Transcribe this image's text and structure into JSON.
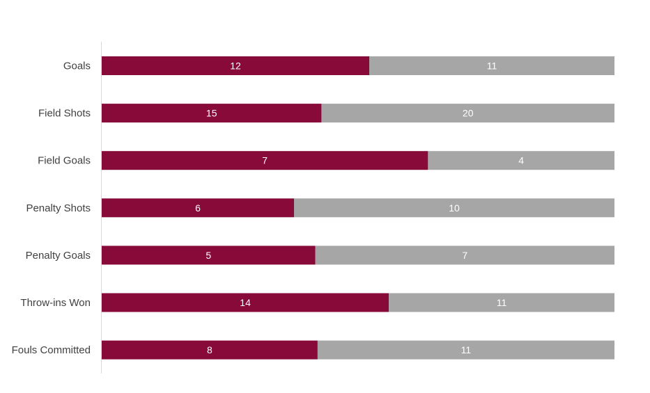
{
  "chart_data": {
    "type": "bar",
    "orientation": "horizontal",
    "stacked": "percent",
    "categories": [
      "Goals",
      "Field Shots",
      "Field Goals",
      "Penalty Shots",
      "Penalty Goals",
      "Throw-ins Won",
      "Fouls Committed"
    ],
    "series": [
      {
        "color": "#880a38",
        "values": [
          12,
          15,
          7,
          6,
          5,
          14,
          8
        ]
      },
      {
        "color": "#a6a6a6",
        "values": [
          11,
          20,
          4,
          10,
          7,
          11,
          11
        ]
      }
    ],
    "title": "",
    "xlabel": "",
    "ylabel": "",
    "grid": false,
    "legend": "none",
    "data_label_color": "#ffffff",
    "axis_label_color": "#404040",
    "axis_line_color": "#d9d9d9"
  }
}
